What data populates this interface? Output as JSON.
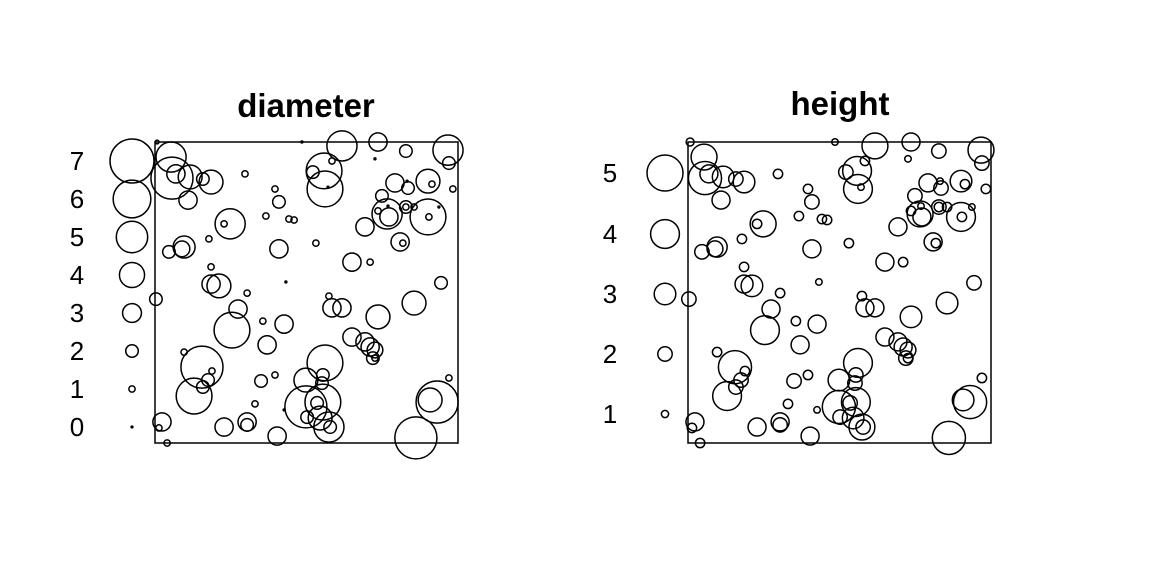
{
  "chart_data": [
    {
      "type": "scatter",
      "style": "marked point pattern, circle radius proportional to mark",
      "title": "diameter",
      "mark": "d",
      "legend_values": [
        "0",
        "1",
        "2",
        "3",
        "4",
        "5",
        "6",
        "7"
      ],
      "legend_placement": "left",
      "color": "#000000"
    },
    {
      "type": "scatter",
      "style": "marked point pattern, circle radius proportional to mark",
      "title": "height",
      "mark": "h",
      "legend_values": [
        "1",
        "2",
        "3",
        "4",
        "5"
      ],
      "legend_placement": "left",
      "color": "#000000"
    }
  ],
  "window": {
    "xlim": [
      0,
      100
    ],
    "ylim": [
      0,
      100
    ]
  },
  "points": [
    [
      0.7,
      100,
      0.6,
      1.1
    ],
    [
      5.3,
      95,
      4.8,
      3.6
    ],
    [
      5.6,
      88,
      6.7,
      4.6
    ],
    [
      6.9,
      89.4,
      2.9,
      2.5
    ],
    [
      11.6,
      88.4,
      3.8,
      3
    ],
    [
      15.8,
      87.7,
      2,
      2
    ],
    [
      18.5,
      86.7,
      3.8,
      3
    ],
    [
      10.9,
      80.7,
      2.9,
      2.5
    ],
    [
      29.7,
      89.4,
      1,
      1.3
    ],
    [
      48.5,
      100,
      0.3,
      0.9
    ],
    [
      61.7,
      98.7,
      4.8,
      3.6
    ],
    [
      73.6,
      100,
      2.9,
      2.5
    ],
    [
      82.8,
      97,
      2,
      2
    ],
    [
      96.7,
      97.3,
      4.8,
      3.6
    ],
    [
      97,
      93,
      2,
      2
    ],
    [
      72.6,
      94.4,
      0.3,
      0.9
    ],
    [
      55.8,
      90.4,
      5.7,
      4
    ],
    [
      52.1,
      90,
      2,
      2
    ],
    [
      58.4,
      93.7,
      1,
      1.3
    ],
    [
      56.1,
      84.4,
      5.7,
      4
    ],
    [
      57.1,
      85,
      0.3,
      0.9
    ],
    [
      39.6,
      84.4,
      1,
      1.3
    ],
    [
      40.9,
      80.1,
      2,
      2
    ],
    [
      36.6,
      75.4,
      1,
      1.3
    ],
    [
      44.2,
      74.4,
      1,
      1.3
    ],
    [
      45.9,
      74.1,
      1,
      1.3
    ],
    [
      24.8,
      72.8,
      4.8,
      3.6
    ],
    [
      22.8,
      72.8,
      1,
      1.3
    ],
    [
      17.8,
      67.8,
      1,
      1.3
    ],
    [
      9.6,
      65.1,
      3.5,
      2.8
    ],
    [
      8.9,
      64.5,
      2.5,
      2.2
    ],
    [
      4.6,
      63.5,
      2,
      2
    ],
    [
      40.9,
      64.5,
      2.9,
      2.5
    ],
    [
      53.1,
      66.4,
      1,
      1.3
    ],
    [
      65,
      60.1,
      2.9,
      2.5
    ],
    [
      71,
      60.1,
      1,
      1.3
    ],
    [
      18.5,
      58.5,
      1,
      1.3
    ],
    [
      18.5,
      52.8,
      2.9,
      2.5
    ],
    [
      21.1,
      52.2,
      3.8,
      3
    ],
    [
      43.2,
      53.5,
      0.3,
      0.9
    ],
    [
      94.4,
      53.2,
      2,
      2
    ],
    [
      79.2,
      86.4,
      2.9,
      2.5
    ],
    [
      83.5,
      84.7,
      2,
      2
    ],
    [
      90.1,
      87,
      3.8,
      3
    ],
    [
      91.4,
      86,
      1,
      1.3
    ],
    [
      83.2,
      87,
      0.3,
      0.9
    ],
    [
      74.9,
      82.1,
      2,
      2
    ],
    [
      76.6,
      76.1,
      4.8,
      3.6
    ],
    [
      77.2,
      75.1,
      2.9,
      2.5
    ],
    [
      73.6,
      77.1,
      1,
      1.3
    ],
    [
      76.9,
      78.7,
      0.3,
      0.9
    ],
    [
      82.8,
      78.4,
      2,
      2
    ],
    [
      82.8,
      78.4,
      1,
      1.3
    ],
    [
      85.5,
      78.4,
      1,
      1.3
    ],
    [
      90.1,
      75.1,
      5.7,
      4
    ],
    [
      90.4,
      75.1,
      1,
      1.3
    ],
    [
      93.7,
      78.4,
      0.3,
      0.9
    ],
    [
      69.3,
      71.8,
      2.9,
      2.5
    ],
    [
      80.9,
      66.8,
      2.9,
      2.5
    ],
    [
      81.8,
      66.4,
      1,
      1.3
    ],
    [
      98.3,
      84.4,
      1,
      1.3
    ],
    [
      0.3,
      47.8,
      2,
      2
    ],
    [
      30.4,
      49.8,
      1,
      1.3
    ],
    [
      27.4,
      44.5,
      2.9,
      2.5
    ],
    [
      25.4,
      37.5,
      5.7,
      4
    ],
    [
      35.6,
      40.5,
      1,
      1.3
    ],
    [
      42.6,
      39.5,
      2.9,
      2.5
    ],
    [
      37,
      32.6,
      2.9,
      2.5
    ],
    [
      57.4,
      48.8,
      1,
      1.3
    ],
    [
      58.4,
      44.9,
      2.9,
      2.5
    ],
    [
      61.7,
      44.9,
      2.9,
      2.5
    ],
    [
      73.6,
      41.9,
      3.8,
      3
    ],
    [
      85.5,
      46.5,
      3.8,
      3
    ],
    [
      65,
      35.2,
      2.9,
      2.5
    ],
    [
      69.3,
      33.6,
      2.9,
      2.5
    ],
    [
      71,
      31.9,
      2.9,
      2.5
    ],
    [
      72.6,
      30.9,
      2.5,
      2.2
    ],
    [
      71.9,
      28.2,
      2,
      2
    ],
    [
      72.6,
      28.2,
      1,
      1.3
    ],
    [
      9.6,
      30.2,
      1,
      1.3
    ],
    [
      15.5,
      25.2,
      6.7,
      4.6
    ],
    [
      12.9,
      15.6,
      5.7,
      4
    ],
    [
      18.8,
      23.9,
      1,
      1.3
    ],
    [
      17.5,
      20.9,
      2,
      2
    ],
    [
      15.8,
      18.6,
      2,
      2
    ],
    [
      35,
      20.6,
      2,
      2
    ],
    [
      39.6,
      22.6,
      1,
      1.3
    ],
    [
      33,
      13,
      1,
      1.3
    ],
    [
      56.1,
      26.6,
      5.7,
      4
    ],
    [
      49.8,
      20.9,
      3.8,
      3
    ],
    [
      55.4,
      22.6,
      2,
      2
    ],
    [
      55.1,
      19.9,
      2,
      2
    ],
    [
      49.8,
      12,
      6.7,
      4.6
    ],
    [
      55.4,
      13.6,
      5.7,
      4
    ],
    [
      53.5,
      13.3,
      2,
      2
    ],
    [
      54.5,
      8.3,
      3.8,
      3
    ],
    [
      57.4,
      5.3,
      4.8,
      3.6
    ],
    [
      50.2,
      8.6,
      2,
      2
    ],
    [
      57.8,
      5.3,
      2,
      2
    ],
    [
      2.3,
      7,
      2.9,
      2.5
    ],
    [
      1.3,
      5,
      1,
      1.3
    ],
    [
      4,
      0,
      1,
      1.3
    ],
    [
      22.8,
      5.3,
      2.9,
      2.5
    ],
    [
      30.4,
      7,
      2.9,
      2.5
    ],
    [
      30.4,
      6,
      2,
      2
    ],
    [
      40.3,
      2.3,
      2.9,
      2.5
    ],
    [
      93.1,
      13.6,
      6.7,
      4.6
    ],
    [
      90.8,
      14.3,
      3.8,
      3
    ],
    [
      97,
      21.6,
      1,
      1.3
    ],
    [
      86.1,
      1.7,
      6.7,
      4.6
    ],
    [
      42.6,
      11,
      0.3,
      0.9
    ]
  ]
}
